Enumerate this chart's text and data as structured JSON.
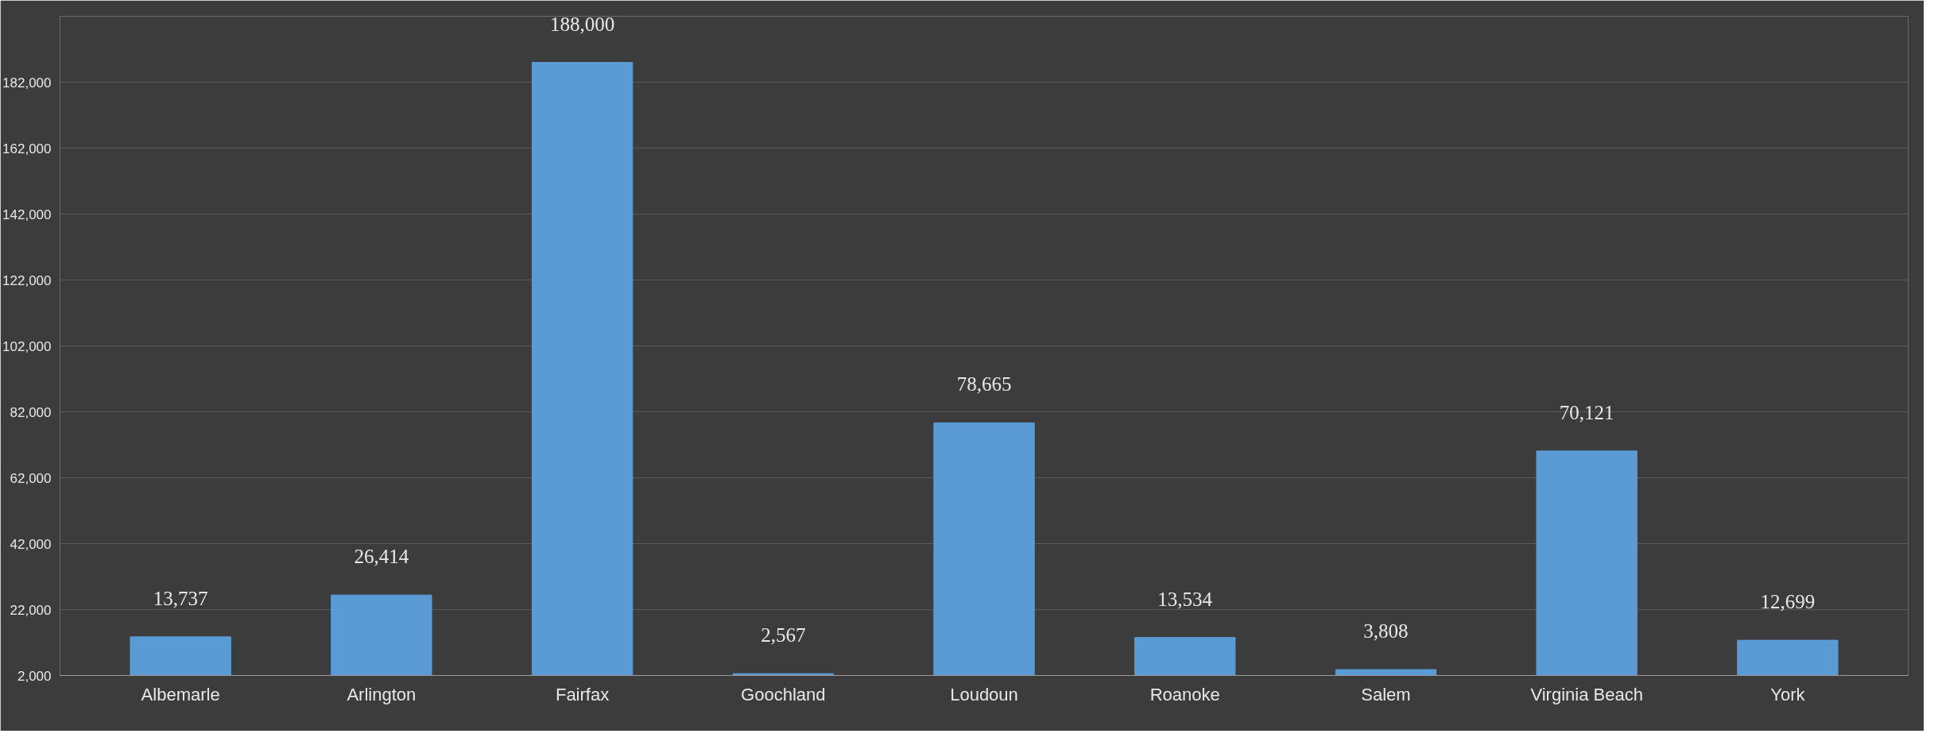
{
  "chart_data": {
    "type": "bar",
    "categories": [
      "Albemarle",
      "Arlington",
      "Fairfax",
      "Goochland",
      "Loudoun",
      "Roanoke",
      "Salem",
      "Virginia Beach",
      "York"
    ],
    "values": [
      13737,
      26414,
      188000,
      2567,
      78665,
      13534,
      3808,
      70121,
      12699
    ],
    "color": "#5b9bd5",
    "ylim": [
      2000,
      202000
    ],
    "yticks": [
      {
        "value": 2000,
        "label": "2,000"
      },
      {
        "value": 22000,
        "label": "22,000"
      },
      {
        "value": 42000,
        "label": "42,000"
      },
      {
        "value": 62000,
        "label": "62,000"
      },
      {
        "value": 82000,
        "label": "82,000"
      },
      {
        "value": 102000,
        "label": "102,000"
      },
      {
        "value": 122000,
        "label": "122,000"
      },
      {
        "value": 142000,
        "label": "142,000"
      },
      {
        "value": 162000,
        "label": "162,000"
      },
      {
        "value": 182000,
        "label": "182,000"
      }
    ],
    "grid": "y",
    "data_labels": true,
    "value_labels": [
      "13,737",
      "26,414",
      "188,000",
      "2,567",
      "78,665",
      "13,534",
      "3,808",
      "70,121",
      "12,699"
    ]
  }
}
